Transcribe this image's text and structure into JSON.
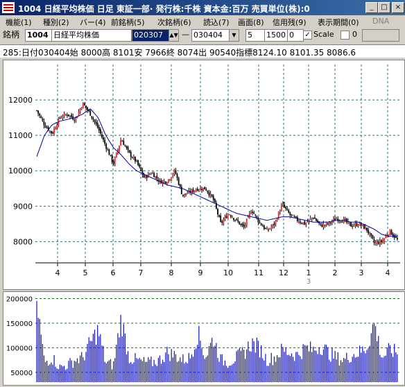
{
  "window": {
    "title": "1004 日経平均株価 日足 東証一部· 発行株:千株 資本金:百万 売買単位(株):0",
    "buttons": [
      "_",
      "□",
      "×"
    ]
  },
  "menu": [
    "機能(1)",
    "種別(2)",
    "バー(4)",
    "前銘柄(5)",
    "次銘柄(6)",
    "読込(7)",
    "画面(8)",
    "信用残(9)",
    "表示期間(0)",
    "DNA"
  ],
  "toolbar": {
    "symbol_label": "銘柄",
    "symbol_code": "1004",
    "symbol_name": "日経平均株価",
    "from_date": "020307",
    "dash": "—",
    "to_date": "030404",
    "period": "5",
    "bars": "1500",
    "offset": "0",
    "scale_label": "Scale",
    "scale_value": "0"
  },
  "info": "285:日付030404始 8000高 8101安 7966終 8074出 90540指標8124.10 8101.35 8086.6",
  "chart_data": [
    {
      "type": "candlestick",
      "y_ticks": [
        8000,
        9000,
        10000,
        11000,
        12000
      ],
      "ylim": [
        7400,
        13000
      ],
      "x_ticks": [
        "4",
        "5",
        "6",
        "7",
        "8",
        "9",
        "10",
        "11",
        "12",
        "1",
        "2",
        "3",
        "4"
      ],
      "year_marker": "3",
      "grid": true,
      "close_anchors": [
        11700,
        11300,
        11050,
        11500,
        11600,
        11450,
        11900,
        11600,
        11200,
        10700,
        10200,
        10900,
        10500,
        10250,
        9800,
        9950,
        9700,
        9700,
        10000,
        9300,
        9400,
        9500,
        9500,
        9200,
        8500,
        8800,
        8600,
        8400,
        8900,
        8550,
        8300,
        8500,
        9050,
        8750,
        8600,
        8500,
        8700,
        8450,
        8500,
        8650,
        8600,
        8450,
        8500,
        8350,
        7950,
        8000,
        8300,
        8050
      ],
      "ma_anchors": [
        10400,
        11000,
        11300,
        11400,
        11450,
        11500,
        11600,
        11750,
        11500,
        11000,
        10650,
        10450,
        10200,
        10000,
        9900,
        9800,
        9700,
        9600,
        9550,
        9500,
        9400,
        9300,
        9200,
        9100,
        9000,
        8900,
        8800,
        8750,
        8700,
        8650,
        8600,
        8650,
        8700,
        8700,
        8650,
        8600,
        8550,
        8550,
        8550,
        8600,
        8600,
        8550,
        8550,
        8450,
        8350,
        8200,
        8150,
        8150
      ]
    },
    {
      "type": "bar",
      "y_ticks": [
        50000,
        100000,
        150000,
        200000
      ],
      "ylim": [
        30000,
        205000
      ],
      "volume_anchors": [
        195000,
        70000,
        80000,
        60000,
        65000,
        75000,
        80000,
        110000,
        135000,
        70000,
        65000,
        160000,
        80000,
        75000,
        70000,
        70000,
        75000,
        90000,
        85000,
        75000,
        80000,
        130000,
        80000,
        120000,
        75000,
        70000,
        80000,
        90000,
        110000,
        100000,
        75000,
        80000,
        95000,
        90000,
        85000,
        100000,
        95000,
        105000,
        90000,
        80000,
        75000,
        85000,
        90000,
        100000,
        150000,
        80000,
        95000,
        90000
      ]
    }
  ]
}
